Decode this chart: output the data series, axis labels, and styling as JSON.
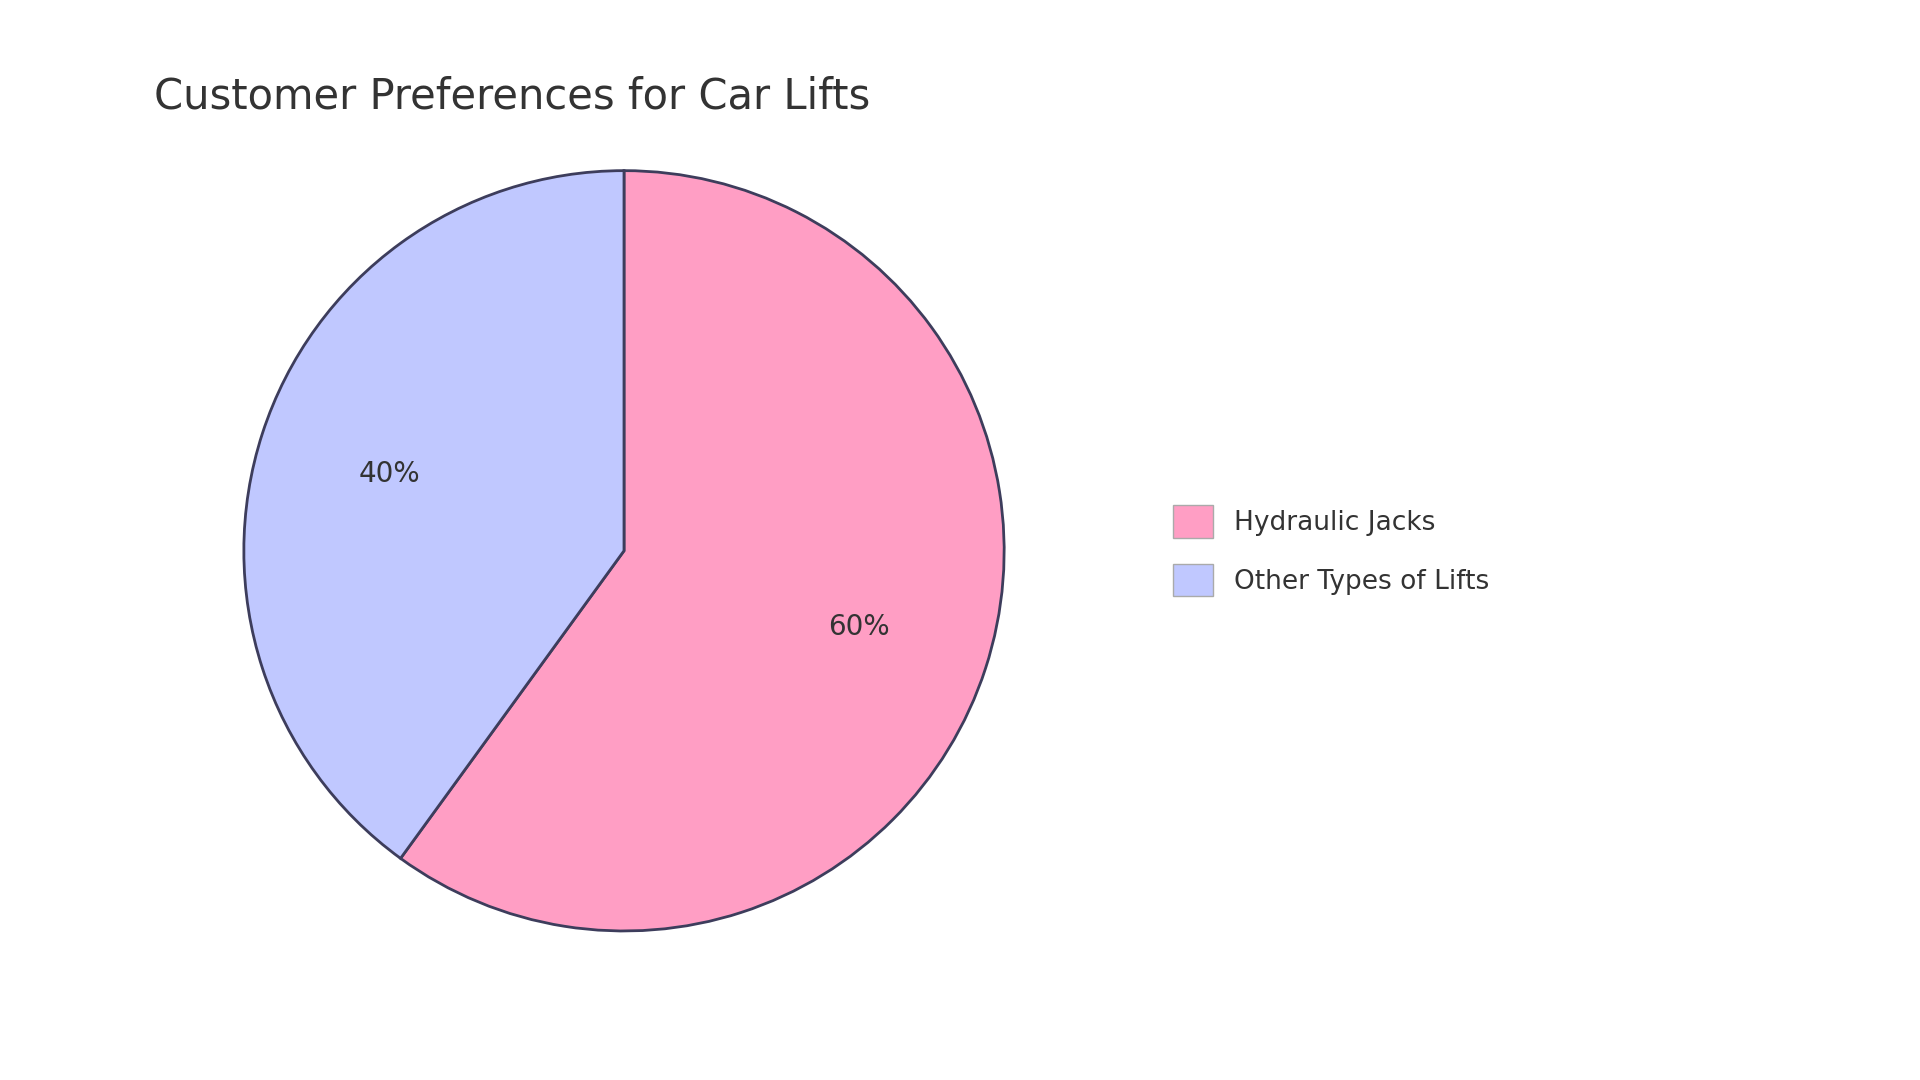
{
  "title": "Customer Preferences for Car Lifts",
  "labels": [
    "Hydraulic Jacks",
    "Other Types of Lifts"
  ],
  "values": [
    60,
    40
  ],
  "colors": [
    "#FF9EC4",
    "#C0C8FF"
  ],
  "edge_color": "#3d3d5c",
  "edge_width": 2.0,
  "startangle": 90,
  "title_fontsize": 30,
  "autopct_fontsize": 20,
  "background_color": "#ffffff",
  "legend_fontsize": 19,
  "text_color": "#333333"
}
